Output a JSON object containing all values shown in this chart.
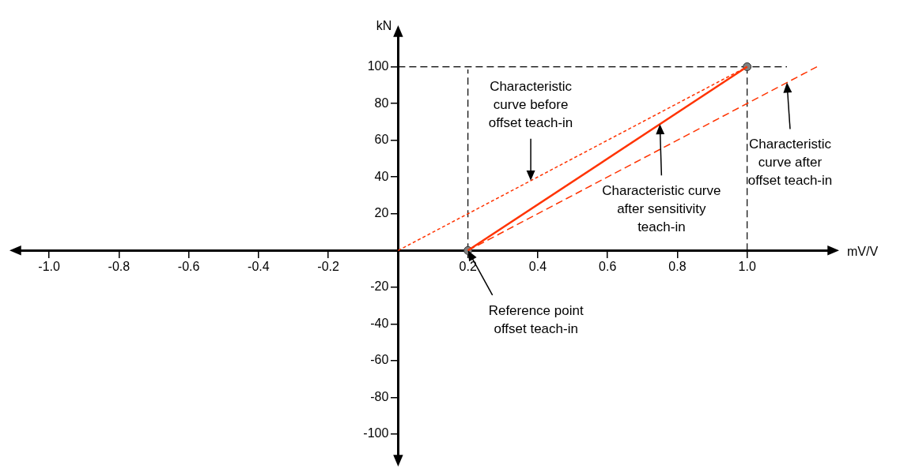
{
  "chart_data": {
    "type": "line",
    "xlabel": "mV/V",
    "ylabel": "kN",
    "xlim": [
      -1.1,
      1.25
    ],
    "ylim": [
      -115,
      120
    ],
    "xticks": [
      {
        "value": -1,
        "label": "-1.0"
      },
      -0.8,
      -0.6,
      -0.4,
      -0.2,
      0.2,
      0.4,
      0.6,
      0.8,
      {
        "value": 1,
        "label": "1.0"
      }
    ],
    "yticks": [
      -100,
      -80,
      -60,
      -40,
      -20,
      20,
      40,
      60,
      80,
      100
    ],
    "grid": false,
    "legend": false,
    "series": [
      {
        "color": "#ff3300",
        "line_style": "dotted",
        "marker": "none",
        "x": [
          0,
          1
        ],
        "values": [
          0,
          100
        ]
      },
      {
        "color": "#ff3300",
        "line_style": "solid",
        "marker": "none",
        "x": [
          0.2,
          1
        ],
        "values": [
          0,
          100
        ]
      },
      {
        "color": "#ff3300",
        "line_style": "dashed",
        "marker": "none",
        "x": [
          0.2,
          1.2
        ],
        "values": [
          0,
          100
        ]
      },
      {
        "type": "scatter",
        "color": "#808080",
        "marker": "circle",
        "x": [
          0.2,
          1
        ],
        "values": [
          0,
          100
        ]
      }
    ],
    "ref_lines": [
      {
        "axis": "x",
        "value": 0.2,
        "color": "#000000",
        "line_style": "dashed"
      },
      {
        "axis": "x",
        "value": 1,
        "color": "#000000",
        "line_style": "dashed"
      },
      {
        "axis": "y",
        "value": 100,
        "color": "#000000",
        "line_style": "dashed"
      }
    ],
    "annotations": [
      {
        "text": "Characteristic curve before offset teach-in",
        "x": 0.38,
        "y": 38
      },
      {
        "text": "Characteristic curve after sensitivity teach-in",
        "x": 0.75,
        "y": 68.75
      },
      {
        "text": "Characteristic curve after offset teach-in",
        "x": 1.114,
        "y": 91.4
      },
      {
        "text": "Reference point offset teach-in",
        "x": 0.2,
        "y": 0
      }
    ]
  }
}
